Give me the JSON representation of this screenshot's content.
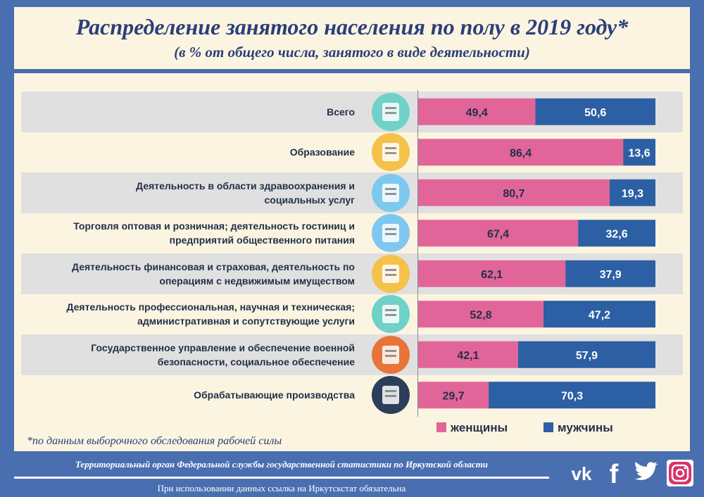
{
  "header": {
    "title": "Распределение занятого населения по полу в 2019 году*",
    "subtitle": "(в % от общего числа, занятого в виде деятельности)"
  },
  "chart_data": {
    "type": "bar",
    "orientation": "horizontal",
    "stacked": true,
    "categories": [
      "Всего",
      "Образование",
      "Деятельность в области здравоохранения и социальных услуг",
      "Торговля оптовая и розничная; деятельность гостиниц и предприятий общественного питания",
      "Деятельность финансовая и страховая,  деятельность по операциям с недвижимым имуществом",
      "Деятельность профессиональная, научная и техническая; административная и сопутствующие услуги",
      "Государственное управление и обеспечение военной безопасности, социальное обеспечение",
      "Обрабатывающие производства"
    ],
    "category_lines": [
      [
        "Всего"
      ],
      [
        "Образование"
      ],
      [
        "Деятельность в области здравоохранения и",
        "социальных услуг"
      ],
      [
        "Торговля оптовая и розничная; деятельность гостиниц и",
        "предприятий общественного питания"
      ],
      [
        "Деятельность финансовая и страховая,  деятельность по",
        "операциям с недвижимым имуществом"
      ],
      [
        "Деятельность профессиональная, научная и техническая;",
        "административная и сопутствующие услуги"
      ],
      [
        "Государственное управление и обеспечение военной",
        "безопасности, социальное обеспечение"
      ],
      [
        "Обрабатывающие производства"
      ]
    ],
    "series": [
      {
        "name": "женщины",
        "color": "#e2659a",
        "values": [
          49.4,
          86.4,
          80.7,
          67.4,
          62.1,
          52.8,
          42.1,
          29.7
        ],
        "labels": [
          "49,4",
          "86,4",
          "80,7",
          "67,4",
          "62,1",
          "52,8",
          "42,1",
          "29,7"
        ]
      },
      {
        "name": "мужчины",
        "color": "#2c5fa3",
        "values": [
          50.6,
          13.6,
          19.3,
          32.6,
          37.9,
          47.2,
          57.9,
          70.3
        ],
        "labels": [
          "50,6",
          "13,6",
          "19,3",
          "32,6",
          "37,9",
          "47,2",
          "57,9",
          "70,3"
        ]
      }
    ],
    "xlim": [
      0,
      100
    ],
    "legend_position": "bottom-right",
    "icons": [
      "document-list-icon",
      "graduation-cap-icon",
      "test-tubes-icon",
      "shopping-cart-icon",
      "money-icon",
      "briefcase-icon",
      "manager-icon",
      "factory-icon"
    ]
  },
  "legend": {
    "women": "женщины",
    "men": "мужчины"
  },
  "footnote": "*по данным выборочного  обследования  рабочей силы",
  "footer": {
    "agency": "Территориальный орган Федеральной службы государственной статистики по Иркутской области",
    "notice": "При использовании данных ссылка на Иркутскстат обязательна"
  },
  "colors": {
    "background": "#4a6fb0",
    "panel": "#fbf4e0",
    "band": "#e0e0e0",
    "women": "#e2659a",
    "men": "#2c5fa3",
    "title": "#2a3f7a"
  }
}
